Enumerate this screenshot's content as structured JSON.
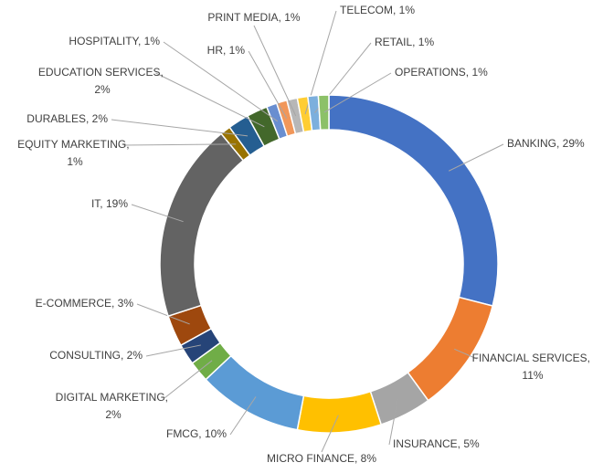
{
  "chart_data": {
    "type": "donut",
    "values": [
      29,
      11,
      5,
      8,
      10,
      2,
      2,
      3,
      19,
      1,
      2,
      2,
      1,
      1,
      1,
      1,
      1,
      1
    ],
    "value_labels": [
      "BANKING, 29%",
      "FINANCIAL SERVICES, 11%",
      "INSURANCE, 5%",
      "MICRO FINANCE, 8%",
      "FMCG, 10%",
      "DIGITAL MARKETING, 2%",
      "CONSULTING, 2%",
      "E-COMMERCE, 3%",
      "IT, 19%",
      "EQUITY MARKETING, 1%",
      "DURABLES, 2%",
      "EDUCATION SERVICES, 2%",
      "HOSPITALITY, 1%",
      "HR, 1%",
      "PRINT MEDIA, 1%",
      "TELECOM, 1%",
      "RETAIL, 1%",
      "OPERATIONS, 1%"
    ],
    "colors": [
      "#4472c4",
      "#ed7d31",
      "#a5a5a5",
      "#ffc000",
      "#5b9bd5",
      "#70ad47",
      "#264478",
      "#9e480e",
      "#636363",
      "#997300",
      "#255e91",
      "#43682b",
      "#698ed0",
      "#f1975a",
      "#b7b7b7",
      "#ffcd33",
      "#7cafdd",
      "#8cc168"
    ]
  }
}
